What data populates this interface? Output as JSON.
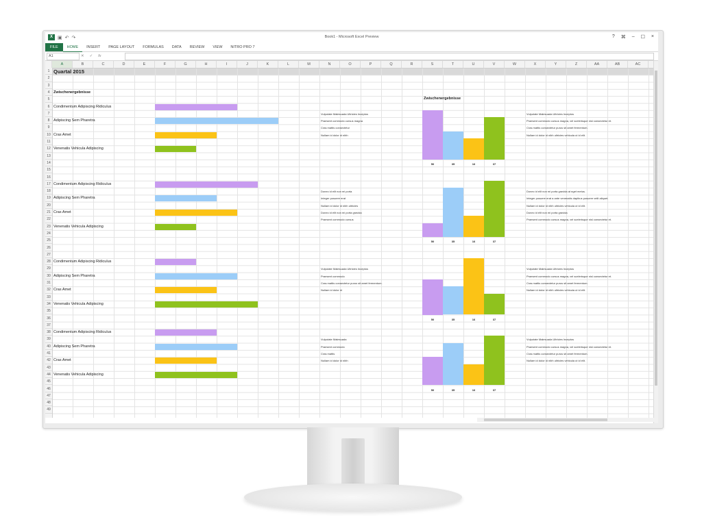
{
  "window": {
    "title": "Book1 - Microsoft Excel Preview",
    "controls": [
      "?",
      "⌘",
      "–",
      "☐",
      "×"
    ],
    "logo": "X"
  },
  "ribbon": {
    "tabs": [
      "FILE",
      "HOME",
      "INSERT",
      "PAGE LAYOUT",
      "FORMULAS",
      "DATA",
      "REVIEW",
      "VIEW",
      "NITRO PRO 7"
    ]
  },
  "formula_bar": {
    "name_box": "A1",
    "formula": ""
  },
  "columns": [
    "A",
    "B",
    "C",
    "D",
    "E",
    "F",
    "G",
    "H",
    "I",
    "J",
    "K",
    "L",
    "M",
    "N",
    "O",
    "P",
    "Q",
    "R",
    "S",
    "T",
    "U",
    "V",
    "W",
    "X",
    "Y",
    "Z",
    "AA",
    "AB",
    "AC"
  ],
  "colors": {
    "purple": "#c89cf0",
    "blue": "#9ccdf8",
    "yellow": "#fbc316",
    "green": "#8fc21e",
    "excel_green": "#217346"
  },
  "sheet": {
    "title": "Quartal 2015",
    "subtitle": "Zwischenergebnisse",
    "chart_title": "Zwischenergebnisse",
    "blocks": [
      {
        "labels": [
          "Condimentum Adipiscing Ridiculus",
          "Adipiscing Sem Pharetra",
          "Cras Amet",
          "Venenatis Vehicula Adipiscing"
        ],
        "bars": [
          4,
          6,
          3,
          2
        ],
        "notes_mid": [
          "Vulputate Malesuada Ultricies Inceptos",
          "Praesent commodo cursus magna",
          "Cras mattis consectetur",
          "Nullam id dolor id nibh"
        ],
        "notes_right": [
          "Vulputate Malesuada Ultricies Inceptos",
          "Praesent commodo cursus magna, vel scelerisque nisl consectetur et.",
          "Cras mattis consectetur purus sit amet fermentum.",
          "Nullam id dolor id nibh ultricies vehicula ut id elit."
        ],
        "chart": [
          50,
          35,
          16,
          37
        ]
      },
      {
        "labels": [
          "Condimentum Adipiscing Ridiculus",
          "Adipiscing Sem Pharetra",
          "Cras Amet",
          "Venenatis Vehicula Adipiscing"
        ],
        "bars": [
          5,
          3,
          4,
          2
        ],
        "notes_mid": [
          "Donec id elit non mi porta",
          "Integer posuere erat",
          "Nullam id dolor id nibh ultricies",
          "Donec id elit non mi porta gravida",
          "Praesent commodo cursus"
        ],
        "notes_right": [
          "Donec id elit non mi porta gravida at eget metus.",
          "Integer posuere erat a ante venenatis dapibus posuere velit aliquet.",
          "Nullam id dolor id nibh ultricies vehicula ut id elit.",
          "Donec id elit non mi porta gravida",
          "Praesent commodo cursus magna, vel scelerisque nisl consectetur et."
        ],
        "chart": [
          50,
          35,
          16,
          37
        ]
      },
      {
        "labels": [
          "Condimentum Adipiscing Ridiculus",
          "Adipiscing Sem Pharetra",
          "Cras Amet",
          "Venenatis Vehicula Adipiscing"
        ],
        "bars": [
          2,
          4,
          3,
          5
        ],
        "notes_mid": [
          "Vulputate Malesuada Ultricies Inceptos",
          "Praesent commodo",
          "Cras mattis consectetur purus sit amet fermentum.",
          "Nullam id dolor id"
        ],
        "notes_right": [
          "Vulputate Malesuada Ultricies Inceptos",
          "Praesent commodo cursus magna, vel scelerisque nisl consectetur et.",
          "Cras mattis consectetur purus sit amet fermentum.",
          "Nullam id dolor id nibh ultricies vehicula ut id elit."
        ],
        "chart": [
          50,
          35,
          16,
          37
        ]
      },
      {
        "labels": [
          "Condimentum Adipiscing Ridiculus",
          "Adipiscing Sem Pharetra",
          "Cras Amet",
          "Venenatis Vehicula Adipiscing"
        ],
        "bars": [
          3,
          4,
          3,
          4
        ],
        "notes_mid": [
          "Vulputate Malesuada",
          "Praesent commodo",
          "Cras mattis",
          "Nullam id dolor id nibh"
        ],
        "notes_right": [
          "Vulputate Malesuada Ultricies Inceptos",
          "Praesent commodo cursus magna, vel scelerisque nisl consectetur et.",
          "Cras mattis consectetur purus sit amet fermentum.",
          "Nullam id dolor id nibh ultricies vehicula ut id elit."
        ],
        "chart": [
          50,
          35,
          16,
          37
        ]
      }
    ]
  },
  "chart_levels": [
    [
      7,
      4,
      3,
      6
    ],
    [
      2,
      7,
      3,
      8
    ],
    [
      5,
      4,
      8,
      3
    ],
    [
      4,
      6,
      3,
      7
    ]
  ]
}
